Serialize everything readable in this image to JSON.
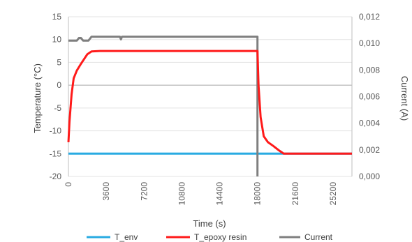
{
  "chart_data": {
    "type": "line",
    "xlabel": "Time (s)",
    "ylabel_left": "Temperature (°C)",
    "ylabel_right": "Current (A)",
    "xlim": [
      0,
      27000
    ],
    "ylim_left": [
      -20,
      15
    ],
    "ylim_right": [
      0,
      0.012
    ],
    "x_ticks": [
      "0",
      "3600",
      "7200",
      "10800",
      "14400",
      "18000",
      "21600",
      "25200"
    ],
    "x_tick_values": [
      0,
      3600,
      7200,
      10800,
      14400,
      18000,
      21600,
      25200
    ],
    "y_left_ticks": [
      "-20",
      "-15",
      "-10",
      "-5",
      "0",
      "5",
      "10",
      "15"
    ],
    "y_left_tick_values": [
      -20,
      -15,
      -10,
      -5,
      0,
      5,
      10,
      15
    ],
    "y_right_ticks": [
      "0,000",
      "0,002",
      "0,004",
      "0,006",
      "0,008",
      "0,010",
      "0,012"
    ],
    "y_right_tick_values": [
      0,
      0.002,
      0.004,
      0.006,
      0.008,
      0.01,
      0.012
    ],
    "grid": "horizontal",
    "legend_position": "bottom",
    "series": [
      {
        "name": "T_env",
        "axis": "left",
        "color": "#29abe2",
        "x": [
          0,
          18000,
          20500,
          27000
        ],
        "y": [
          -15,
          -15,
          -15,
          -15
        ]
      },
      {
        "name": "T_epoxy resin",
        "axis": "left",
        "color": "#ff1a1a",
        "x": [
          0,
          100,
          300,
          500,
          800,
          1200,
          1600,
          1800,
          2200,
          3000,
          18000,
          18100,
          18300,
          18600,
          19000,
          19500,
          20000,
          20500,
          21000,
          22000,
          27000
        ],
        "y": [
          -12.5,
          -8,
          -2,
          1.5,
          3.2,
          4.7,
          6.1,
          6.8,
          7.4,
          7.5,
          7.5,
          0,
          -7,
          -11.2,
          -12.5,
          -13.3,
          -14.2,
          -15,
          -15,
          -15,
          -15
        ]
      },
      {
        "name": "Current",
        "axis": "right",
        "color": "#7f7f7f",
        "x": [
          0,
          800,
          1000,
          1200,
          1400,
          1700,
          1900,
          2200,
          4900,
          5000,
          5100,
          18000,
          18000.1
        ],
        "y": [
          0.0102,
          0.0102,
          0.0104,
          0.0104,
          0.0102,
          0.0102,
          0.0102,
          0.0105,
          0.0105,
          0.0103,
          0.0105,
          0.0105,
          0.0
        ]
      }
    ]
  }
}
